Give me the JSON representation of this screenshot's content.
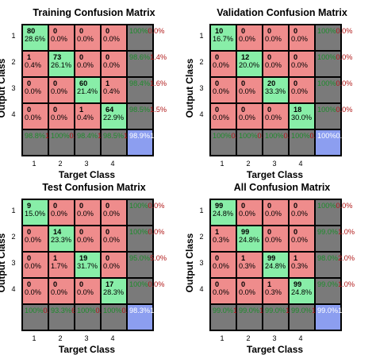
{
  "chart_data": [
    {
      "type": "heatmap",
      "title": "Training Confusion Matrix",
      "xlabel": "Target Class",
      "ylabel": "Output Class",
      "classes": [
        "1",
        "2",
        "3",
        "4"
      ],
      "counts": [
        [
          80,
          0,
          0,
          0
        ],
        [
          1,
          73,
          0,
          0
        ],
        [
          0,
          0,
          60,
          1
        ],
        [
          0,
          0,
          1,
          64
        ]
      ],
      "cell_pct": [
        [
          "28.6%",
          "0.0%",
          "0.0%",
          "0.0%"
        ],
        [
          "0.4%",
          "26.1%",
          "0.0%",
          "0.0%"
        ],
        [
          "0.0%",
          "0.0%",
          "21.4%",
          "0.4%"
        ],
        [
          "0.0%",
          "0.0%",
          "0.4%",
          "22.9%"
        ]
      ],
      "row_summary": [
        [
          "100%",
          "0.0%"
        ],
        [
          "98.6%",
          "1.4%"
        ],
        [
          "98.4%",
          "1.6%"
        ],
        [
          "98.5%",
          "1.5%"
        ]
      ],
      "col_summary": [
        [
          "98.8%",
          "1.2%"
        ],
        [
          "100%",
          "0.0%"
        ],
        [
          "98.4%",
          "1.6%"
        ],
        [
          "98.5%",
          "1.5%"
        ]
      ],
      "overall": [
        "98.9%",
        "1.1%"
      ]
    },
    {
      "type": "heatmap",
      "title": "Validation Confusion Matrix",
      "xlabel": "Target Class",
      "ylabel": "Output Class",
      "classes": [
        "1",
        "2",
        "3",
        "4"
      ],
      "counts": [
        [
          10,
          0,
          0,
          0
        ],
        [
          0,
          12,
          0,
          0
        ],
        [
          0,
          0,
          20,
          0
        ],
        [
          0,
          0,
          0,
          18
        ]
      ],
      "cell_pct": [
        [
          "16.7%",
          "0.0%",
          "0.0%",
          "0.0%"
        ],
        [
          "0.0%",
          "20.0%",
          "0.0%",
          "0.0%"
        ],
        [
          "0.0%",
          "0.0%",
          "33.3%",
          "0.0%"
        ],
        [
          "0.0%",
          "0.0%",
          "0.0%",
          "30.0%"
        ]
      ],
      "row_summary": [
        [
          "100%",
          "0.0%"
        ],
        [
          "100%",
          "0.0%"
        ],
        [
          "100%",
          "0.0%"
        ],
        [
          "100%",
          "0.0%"
        ]
      ],
      "col_summary": [
        [
          "100%",
          "0.0%"
        ],
        [
          "100%",
          "0.0%"
        ],
        [
          "100%",
          "0.0%"
        ],
        [
          "100%",
          "0.0%"
        ]
      ],
      "overall": [
        "100%",
        "0.0%"
      ]
    },
    {
      "type": "heatmap",
      "title": "Test Confusion Matrix",
      "xlabel": "Target Class",
      "ylabel": "Output Class",
      "classes": [
        "1",
        "2",
        "3",
        "4"
      ],
      "counts": [
        [
          9,
          0,
          0,
          0
        ],
        [
          0,
          14,
          0,
          0
        ],
        [
          0,
          1,
          19,
          0
        ],
        [
          0,
          0,
          0,
          17
        ]
      ],
      "cell_pct": [
        [
          "15.0%",
          "0.0%",
          "0.0%",
          "0.0%"
        ],
        [
          "0.0%",
          "23.3%",
          "0.0%",
          "0.0%"
        ],
        [
          "0.0%",
          "1.7%",
          "31.7%",
          "0.0%"
        ],
        [
          "0.0%",
          "0.0%",
          "0.0%",
          "28.3%"
        ]
      ],
      "row_summary": [
        [
          "100%",
          "0.0%"
        ],
        [
          "100%",
          "0.0%"
        ],
        [
          "95.0%",
          "5.0%"
        ],
        [
          "100%",
          "0.0%"
        ]
      ],
      "col_summary": [
        [
          "100%",
          "0.0%"
        ],
        [
          "93.3%",
          "6.7%"
        ],
        [
          "100%",
          "0.0%"
        ],
        [
          "100%",
          "0.0%"
        ]
      ],
      "overall": [
        "98.3%",
        "1.7%"
      ]
    },
    {
      "type": "heatmap",
      "title": "All Confusion Matrix",
      "xlabel": "Target Class",
      "ylabel": "Output Class",
      "classes": [
        "1",
        "2",
        "3",
        "4"
      ],
      "counts": [
        [
          99,
          0,
          0,
          0
        ],
        [
          1,
          99,
          0,
          0
        ],
        [
          0,
          1,
          99,
          1
        ],
        [
          0,
          0,
          1,
          99
        ]
      ],
      "cell_pct": [
        [
          "24.8%",
          "0.0%",
          "0.0%",
          "0.0%"
        ],
        [
          "0.3%",
          "24.8%",
          "0.0%",
          "0.0%"
        ],
        [
          "0.0%",
          "0.3%",
          "24.8%",
          "0.3%"
        ],
        [
          "0.0%",
          "0.0%",
          "0.3%",
          "24.8%"
        ]
      ],
      "row_summary": [
        [
          "100%",
          "0.0%"
        ],
        [
          "99.0%",
          "1.0%"
        ],
        [
          "98.0%",
          "2.0%"
        ],
        [
          "99.0%",
          "1.0%"
        ]
      ],
      "col_summary": [
        [
          "99.0%",
          "1.0%"
        ],
        [
          "99.0%",
          "1.0%"
        ],
        [
          "99.0%",
          "1.0%"
        ],
        [
          "99.0%",
          "1.0%"
        ]
      ],
      "overall": [
        "99.0%",
        "1.0%"
      ]
    }
  ],
  "colors": {
    "correct": "#88eea8",
    "incorrect": "#ef8c8c",
    "summary": "#7a7a7a",
    "overall": "#8c9ef0"
  }
}
